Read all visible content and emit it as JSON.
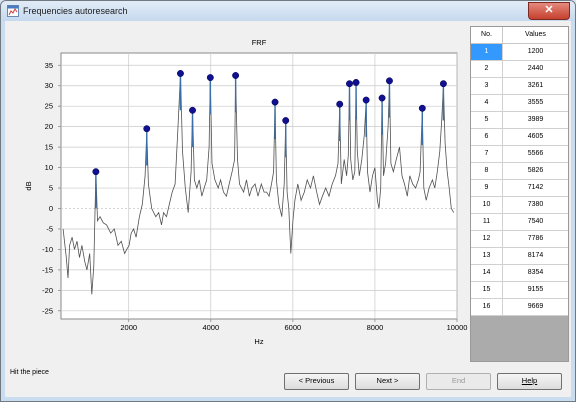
{
  "window": {
    "title": "Frequencies autoresearch",
    "close_label": "✕",
    "icon": "app-icon"
  },
  "status_text": "Hit the piece",
  "buttons": {
    "previous": "< Previous",
    "next": "Next >",
    "end": "End",
    "help": "Help"
  },
  "table": {
    "headers": [
      "No.",
      "Values"
    ],
    "selected_index": 0,
    "rows": [
      [
        "1",
        "1200"
      ],
      [
        "2",
        "2440"
      ],
      [
        "3",
        "3261"
      ],
      [
        "4",
        "3555"
      ],
      [
        "5",
        "3989"
      ],
      [
        "6",
        "4605"
      ],
      [
        "7",
        "5566"
      ],
      [
        "8",
        "5826"
      ],
      [
        "9",
        "7142"
      ],
      [
        "10",
        "7380"
      ],
      [
        "11",
        "7540"
      ],
      [
        "12",
        "7786"
      ],
      [
        "13",
        "8174"
      ],
      [
        "14",
        "8354"
      ],
      [
        "15",
        "9155"
      ],
      [
        "16",
        "9669"
      ]
    ]
  },
  "chart_data": {
    "type": "line",
    "title": "FRF",
    "xlabel": "Hz",
    "ylabel": "dB",
    "xlim": [
      350,
      10000
    ],
    "ylim": [
      -27,
      38
    ],
    "xticks": [
      2000,
      4000,
      6000,
      8000,
      10000
    ],
    "yticks": [
      -25,
      -20,
      -15,
      -10,
      -5,
      0,
      5,
      10,
      15,
      20,
      25,
      30,
      35
    ],
    "grid": true,
    "series": [
      {
        "values": [
          [
            400,
            -5
          ],
          [
            480,
            -12
          ],
          [
            520,
            -17
          ],
          [
            560,
            -9
          ],
          [
            620,
            -7
          ],
          [
            680,
            -10
          ],
          [
            740,
            -8
          ],
          [
            800,
            -12
          ],
          [
            860,
            -9
          ],
          [
            930,
            -13
          ],
          [
            980,
            -15
          ],
          [
            1050,
            -11
          ],
          [
            1100,
            -21
          ],
          [
            1150,
            -14
          ],
          [
            1200,
            9
          ],
          [
            1240,
            -3
          ],
          [
            1300,
            -2
          ],
          [
            1380,
            -3.5
          ],
          [
            1460,
            -4
          ],
          [
            1560,
            -6
          ],
          [
            1650,
            -5
          ],
          [
            1740,
            -9
          ],
          [
            1820,
            -8
          ],
          [
            1900,
            -11
          ],
          [
            1950,
            -10
          ],
          [
            2010,
            -9
          ],
          [
            2060,
            -6
          ],
          [
            2120,
            -5
          ],
          [
            2180,
            -7
          ],
          [
            2260,
            -2
          ],
          [
            2330,
            1
          ],
          [
            2400,
            8
          ],
          [
            2440,
            19
          ],
          [
            2480,
            6
          ],
          [
            2560,
            0
          ],
          [
            2660,
            -2
          ],
          [
            2730,
            -1
          ],
          [
            2800,
            -4
          ],
          [
            2850,
            -1
          ],
          [
            2920,
            -2
          ],
          [
            2990,
            1
          ],
          [
            3060,
            4
          ],
          [
            3130,
            6
          ],
          [
            3200,
            20
          ],
          [
            3261,
            33
          ],
          [
            3310,
            14
          ],
          [
            3380,
            5
          ],
          [
            3450,
            -1
          ],
          [
            3520,
            9
          ],
          [
            3555,
            24
          ],
          [
            3600,
            7
          ],
          [
            3660,
            5
          ],
          [
            3720,
            7
          ],
          [
            3780,
            3
          ],
          [
            3840,
            5
          ],
          [
            3900,
            7
          ],
          [
            3960,
            15
          ],
          [
            3989,
            32
          ],
          [
            4030,
            11
          ],
          [
            4100,
            7
          ],
          [
            4180,
            5
          ],
          [
            4240,
            7
          ],
          [
            4310,
            4
          ],
          [
            4380,
            3
          ],
          [
            4450,
            6
          ],
          [
            4520,
            9
          ],
          [
            4580,
            12
          ],
          [
            4605,
            32
          ],
          [
            4650,
            12
          ],
          [
            4700,
            6
          ],
          [
            4800,
            4
          ],
          [
            4870,
            7
          ],
          [
            4940,
            3
          ],
          [
            5000,
            5
          ],
          [
            5080,
            6
          ],
          [
            5150,
            3
          ],
          [
            5230,
            6
          ],
          [
            5300,
            4
          ],
          [
            5360,
            4
          ],
          [
            5420,
            3
          ],
          [
            5480,
            6
          ],
          [
            5530,
            9
          ],
          [
            5566,
            26
          ],
          [
            5600,
            7
          ],
          [
            5660,
            1
          ],
          [
            5730,
            -2
          ],
          [
            5790,
            6
          ],
          [
            5826,
            21
          ],
          [
            5860,
            4
          ],
          [
            5900,
            0
          ],
          [
            5950,
            -11
          ],
          [
            6000,
            -3
          ],
          [
            6050,
            2
          ],
          [
            6120,
            6
          ],
          [
            6200,
            2
          ],
          [
            6280,
            4
          ],
          [
            6350,
            7
          ],
          [
            6430,
            5
          ],
          [
            6500,
            8
          ],
          [
            6580,
            4
          ],
          [
            6650,
            1
          ],
          [
            6720,
            3
          ],
          [
            6800,
            5
          ],
          [
            6880,
            3
          ],
          [
            6960,
            6
          ],
          [
            7040,
            8
          ],
          [
            7100,
            11
          ],
          [
            7142,
            25
          ],
          [
            7180,
            6
          ],
          [
            7250,
            12
          ],
          [
            7310,
            8
          ],
          [
            7350,
            13
          ],
          [
            7380,
            30
          ],
          [
            7410,
            12
          ],
          [
            7460,
            7
          ],
          [
            7510,
            9
          ],
          [
            7540,
            30
          ],
          [
            7570,
            14
          ],
          [
            7620,
            8
          ],
          [
            7680,
            12
          ],
          [
            7740,
            18
          ],
          [
            7786,
            26
          ],
          [
            7820,
            9
          ],
          [
            7880,
            4
          ],
          [
            7940,
            8
          ],
          [
            8000,
            10
          ],
          [
            8060,
            2
          ],
          [
            8100,
            0
          ],
          [
            8140,
            5
          ],
          [
            8174,
            27
          ],
          [
            8210,
            8
          ],
          [
            8260,
            11
          ],
          [
            8320,
            20
          ],
          [
            8354,
            31
          ],
          [
            8390,
            11
          ],
          [
            8450,
            9
          ],
          [
            8520,
            12
          ],
          [
            8600,
            15
          ],
          [
            8660,
            8
          ],
          [
            8720,
            6
          ],
          [
            8790,
            3
          ],
          [
            8850,
            8
          ],
          [
            8920,
            6
          ],
          [
            8990,
            5
          ],
          [
            9060,
            7
          ],
          [
            9100,
            9
          ],
          [
            9155,
            24
          ],
          [
            9190,
            5
          ],
          [
            9250,
            2
          ],
          [
            9320,
            5
          ],
          [
            9400,
            7
          ],
          [
            9460,
            5
          ],
          [
            9520,
            9
          ],
          [
            9580,
            14
          ],
          [
            9630,
            22
          ],
          [
            9669,
            30
          ],
          [
            9710,
            16
          ],
          [
            9760,
            9
          ],
          [
            9810,
            5
          ],
          [
            9860,
            0
          ],
          [
            9920,
            -1
          ]
        ]
      }
    ],
    "markers": [
      [
        1200,
        9
      ],
      [
        2440,
        19.5
      ],
      [
        3261,
        33
      ],
      [
        3555,
        24
      ],
      [
        3989,
        32
      ],
      [
        4605,
        32.5
      ],
      [
        5566,
        26
      ],
      [
        5826,
        21.5
      ],
      [
        7142,
        25.5
      ],
      [
        7380,
        30.5
      ],
      [
        7540,
        30.8
      ],
      [
        7786,
        26.5
      ],
      [
        8174,
        27
      ],
      [
        8354,
        31.2
      ],
      [
        9155,
        24.5
      ],
      [
        9669,
        30.5
      ]
    ],
    "colors": {
      "line": "#505050",
      "marker": "#101090",
      "marker_stem": "#3a6fa8",
      "grid": "#c9c9c9",
      "plot_bg": "#ffffff"
    }
  }
}
